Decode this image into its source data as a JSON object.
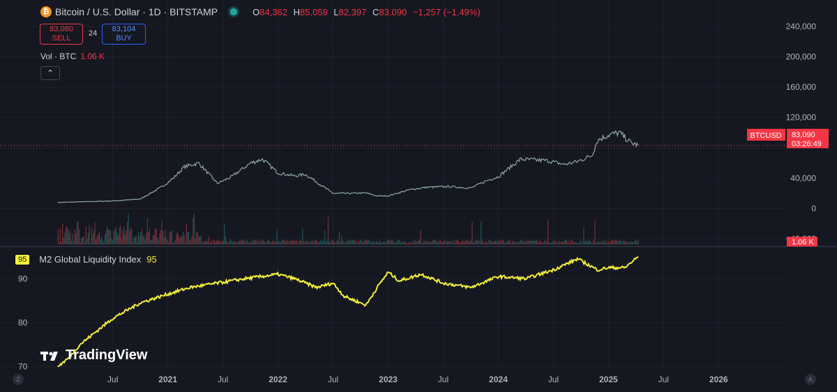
{
  "header": {
    "coin_glyph": "₿",
    "title": "Bitcoin / U.S. Dollar · 1D · BITSTAMP",
    "ohlc": [
      {
        "label": "O",
        "value": "84,362"
      },
      {
        "label": "H",
        "value": "85,059"
      },
      {
        "label": "L",
        "value": "82,397"
      },
      {
        "label": "C",
        "value": "83,090"
      },
      {
        "label": "",
        "value": "−1,257 (−1.49%)"
      }
    ]
  },
  "trade": {
    "sell_price": "83,080",
    "sell_label": "SELL",
    "spread": "24",
    "buy_price": "83,104",
    "buy_label": "BUY"
  },
  "volume": {
    "label": "Vol · BTC",
    "value": "1.06 K",
    "axis_badge": "1.06 K"
  },
  "collapse_glyph": "⌃",
  "price_badge": {
    "symbol": "BTCUSD",
    "price": "83,090",
    "countdown": "03:26:49"
  },
  "indicator": {
    "badge": "95",
    "name": "M2 Global Liquidity Index",
    "value": "95"
  },
  "brand": "TradingView",
  "corner_left": "Z",
  "corner_right": "A",
  "colors": {
    "background": "#151721",
    "btc_up": "#26a69a",
    "btc_down": "#ef5350",
    "m2_line": "#f5f13b",
    "badge_red": "#f23645"
  },
  "chart_data": [
    {
      "type": "line",
      "title": "Bitcoin / U.S. Dollar · 1D · BITSTAMP",
      "ylabel": "USD",
      "ylim": [
        -50000,
        250000
      ],
      "yticks": [
        240000,
        200000,
        160000,
        120000,
        80000,
        40000,
        0,
        -40000
      ],
      "ytick_labels": [
        "240,000",
        "200,000",
        "160,000",
        "120,000",
        "",
        "40,000",
        "0",
        "−40,000"
      ],
      "x_years": [
        2020.0,
        2020.25,
        2020.5,
        2020.75,
        2020.95,
        2021.05,
        2021.15,
        2021.28,
        2021.45,
        2021.58,
        2021.75,
        2021.86,
        2022.0,
        2022.15,
        2022.25,
        2022.38,
        2022.5,
        2022.65,
        2022.8,
        2022.9,
        2023.0,
        2023.2,
        2023.35,
        2023.55,
        2023.75,
        2023.9,
        2024.0,
        2024.2,
        2024.45,
        2024.6,
        2024.72,
        2024.85,
        2024.9,
        2025.0,
        2025.1,
        2025.2,
        2025.27
      ],
      "values": [
        8000,
        9000,
        10000,
        12500,
        29000,
        40000,
        55000,
        60000,
        33000,
        42000,
        60000,
        65000,
        47000,
        43000,
        45000,
        32000,
        20000,
        20000,
        20500,
        16500,
        16700,
        25000,
        28000,
        29000,
        27000,
        37000,
        42000,
        65000,
        63000,
        58000,
        62000,
        70000,
        90000,
        97000,
        100000,
        87000,
        83090
      ],
      "last_price": 83090,
      "volume_xtick_note": "volume bars at bottom of price pane"
    },
    {
      "type": "line",
      "title": "M2 Global Liquidity Index",
      "ylim": [
        69,
        97
      ],
      "yticks": [
        90,
        80,
        70
      ],
      "ytick_labels": [
        "90",
        "80",
        "70"
      ],
      "x_years": [
        2020.0,
        2020.1,
        2020.2,
        2020.35,
        2020.5,
        2020.75,
        2021.0,
        2021.2,
        2021.45,
        2021.7,
        2022.0,
        2022.15,
        2022.35,
        2022.5,
        2022.6,
        2022.8,
        2022.9,
        2023.0,
        2023.1,
        2023.3,
        2023.5,
        2023.75,
        2024.0,
        2024.25,
        2024.5,
        2024.72,
        2024.9,
        2025.0,
        2025.15,
        2025.27
      ],
      "values": [
        70,
        72,
        75,
        78,
        81,
        84.5,
        86.5,
        88,
        89,
        90,
        91,
        90,
        88,
        89,
        86,
        84,
        88,
        91.5,
        89.5,
        91,
        89,
        88,
        90.5,
        90,
        92,
        94.5,
        92,
        92.5,
        92.5,
        95
      ],
      "xticks": [
        "Jul",
        "2021",
        "Jul",
        "2022",
        "Jul",
        "2023",
        "Jul",
        "2024",
        "Jul",
        "2025",
        "Jul",
        "2026"
      ],
      "xtick_years": [
        2020.5,
        2021.0,
        2021.5,
        2022.0,
        2022.5,
        2023.0,
        2023.5,
        2024.0,
        2024.5,
        2025.0,
        2025.5,
        2026.0
      ]
    }
  ]
}
